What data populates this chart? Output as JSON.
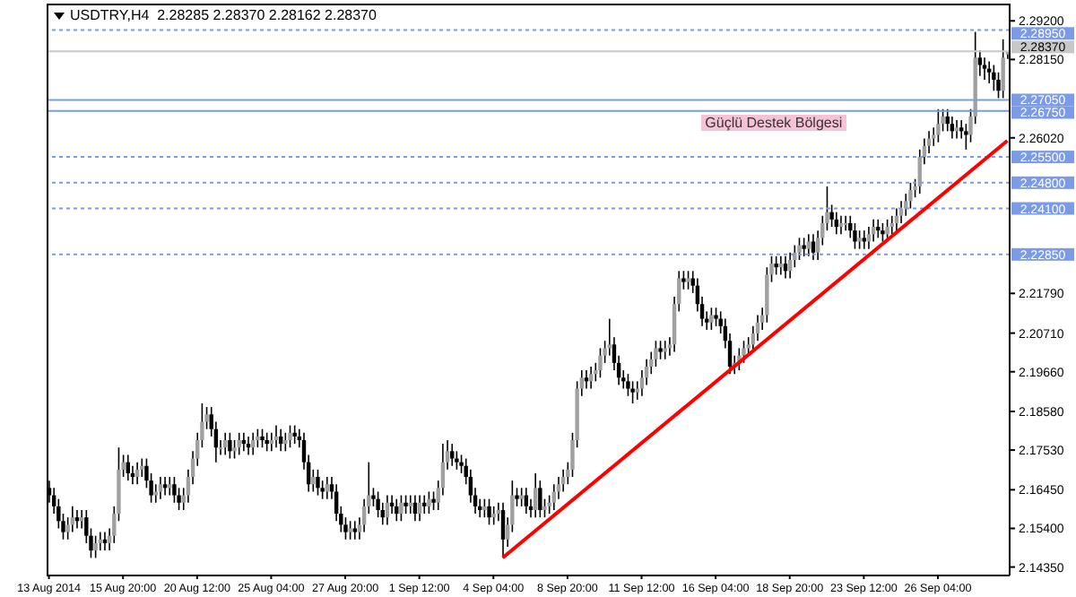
{
  "chart_data": {
    "type": "candlestick",
    "title": "USDTRY,H4  2.28285 2.28370 2.28162 2.28370",
    "categories": [
      "13 Aug 2014",
      null,
      null,
      null,
      null,
      null,
      null,
      null,
      null,
      null,
      null,
      null,
      null,
      null,
      null,
      null,
      "15 Aug 20:00",
      null,
      null,
      null,
      null,
      null,
      null,
      null,
      null,
      null,
      null,
      null,
      null,
      null,
      null,
      null,
      "20 Aug 12:00",
      null,
      null,
      null,
      null,
      null,
      null,
      null,
      null,
      null,
      null,
      null,
      null,
      null,
      null,
      null,
      "25 Aug 04:00",
      null,
      null,
      null,
      null,
      null,
      null,
      null,
      null,
      null,
      null,
      null,
      null,
      null,
      null,
      null,
      "27 Aug 20:00",
      null,
      null,
      null,
      null,
      null,
      null,
      null,
      null,
      null,
      null,
      null,
      null,
      null,
      null,
      null,
      "1 Sep 12:00",
      null,
      null,
      null,
      null,
      null,
      null,
      null,
      null,
      null,
      null,
      null,
      null,
      null,
      null,
      null,
      "4 Sep 04:00",
      null,
      null,
      null,
      null,
      null,
      null,
      null,
      null,
      null,
      null,
      null,
      null,
      null,
      null,
      null,
      "8 Sep 20:00",
      null,
      null,
      null,
      null,
      null,
      null,
      null,
      null,
      null,
      null,
      null,
      null,
      null,
      null,
      null,
      "11 Sep 12:00",
      null,
      null,
      null,
      null,
      null,
      null,
      null,
      null,
      null,
      null,
      null,
      null,
      null,
      null,
      null,
      "16 Sep 04:00",
      null,
      null,
      null,
      null,
      null,
      null,
      null,
      null,
      null,
      null,
      null,
      null,
      null,
      null,
      null,
      "18 Sep 20:00",
      null,
      null,
      null,
      null,
      null,
      null,
      null,
      null,
      null,
      null,
      null,
      null,
      null,
      null,
      null,
      "23 Sep 12:00",
      null,
      null,
      null,
      null,
      null,
      null,
      null,
      null,
      null,
      null,
      null,
      null,
      null,
      null,
      null,
      "26 Sep 04:00",
      null,
      null,
      null,
      null,
      null,
      null,
      null,
      null,
      null,
      null,
      null,
      null,
      null,
      null,
      null
    ],
    "ohlc": [
      [
        2.165,
        2.167,
        2.161,
        2.163
      ],
      [
        2.163,
        2.165,
        2.158,
        2.16
      ],
      [
        2.16,
        2.162,
        2.154,
        2.156
      ],
      [
        2.156,
        2.158,
        2.151,
        2.153
      ],
      [
        2.153,
        2.157,
        2.151,
        2.155
      ],
      [
        2.155,
        2.16,
        2.153,
        2.157
      ],
      [
        2.157,
        2.159,
        2.154,
        2.156
      ],
      [
        2.156,
        2.159,
        2.154,
        2.157
      ],
      [
        2.157,
        2.159,
        2.15,
        2.152
      ],
      [
        2.152,
        2.154,
        2.146,
        2.148
      ],
      [
        2.148,
        2.152,
        2.146,
        2.15
      ],
      [
        2.15,
        2.153,
        2.148,
        2.151
      ],
      [
        2.151,
        2.153,
        2.148,
        2.15
      ],
      [
        2.15,
        2.154,
        2.148,
        2.152
      ],
      [
        2.152,
        2.16,
        2.15,
        2.158
      ],
      [
        2.158,
        2.176,
        2.156,
        2.17
      ],
      [
        2.17,
        2.174,
        2.168,
        2.172
      ],
      [
        2.172,
        2.174,
        2.167,
        2.169
      ],
      [
        2.169,
        2.171,
        2.166,
        2.168
      ],
      [
        2.168,
        2.172,
        2.166,
        2.17
      ],
      [
        2.17,
        2.173,
        2.168,
        2.171
      ],
      [
        2.171,
        2.173,
        2.165,
        2.167
      ],
      [
        2.167,
        2.169,
        2.161,
        2.163
      ],
      [
        2.163,
        2.166,
        2.161,
        2.164
      ],
      [
        2.164,
        2.168,
        2.162,
        2.166
      ],
      [
        2.166,
        2.168,
        2.163,
        2.165
      ],
      [
        2.165,
        2.168,
        2.163,
        2.166
      ],
      [
        2.166,
        2.168,
        2.161,
        2.163
      ],
      [
        2.163,
        2.165,
        2.159,
        2.161
      ],
      [
        2.161,
        2.165,
        2.159,
        2.163
      ],
      [
        2.163,
        2.17,
        2.161,
        2.168
      ],
      [
        2.168,
        2.175,
        2.166,
        2.173
      ],
      [
        2.173,
        2.18,
        2.171,
        2.178
      ],
      [
        2.178,
        2.188,
        2.176,
        2.183
      ],
      [
        2.183,
        2.187,
        2.181,
        2.185
      ],
      [
        2.185,
        2.187,
        2.179,
        2.181
      ],
      [
        2.181,
        2.183,
        2.172,
        2.176
      ],
      [
        2.176,
        2.178,
        2.174,
        2.176
      ],
      [
        2.176,
        2.18,
        2.174,
        2.178
      ],
      [
        2.178,
        2.18,
        2.173,
        2.175
      ],
      [
        2.175,
        2.178,
        2.173,
        2.176
      ],
      [
        2.176,
        2.18,
        2.174,
        2.178
      ],
      [
        2.178,
        2.18,
        2.175,
        2.177
      ],
      [
        2.177,
        2.179,
        2.174,
        2.176
      ],
      [
        2.176,
        2.18,
        2.174,
        2.178
      ],
      [
        2.178,
        2.181,
        2.176,
        2.179
      ],
      [
        2.179,
        2.181,
        2.176,
        2.178
      ],
      [
        2.178,
        2.18,
        2.175,
        2.177
      ],
      [
        2.177,
        2.18,
        2.175,
        2.178
      ],
      [
        2.178,
        2.182,
        2.176,
        2.179
      ],
      [
        2.179,
        2.181,
        2.175,
        2.177
      ],
      [
        2.177,
        2.18,
        2.175,
        2.178
      ],
      [
        2.178,
        2.182,
        2.176,
        2.18
      ],
      [
        2.18,
        2.182,
        2.177,
        2.179
      ],
      [
        2.179,
        2.181,
        2.176,
        2.178
      ],
      [
        2.178,
        2.18,
        2.17,
        2.172
      ],
      [
        2.172,
        2.174,
        2.164,
        2.166
      ],
      [
        2.166,
        2.17,
        2.164,
        2.168
      ],
      [
        2.168,
        2.17,
        2.163,
        2.165
      ],
      [
        2.165,
        2.167,
        2.162,
        2.164
      ],
      [
        2.164,
        2.168,
        2.162,
        2.166
      ],
      [
        2.166,
        2.168,
        2.162,
        2.164
      ],
      [
        2.164,
        2.166,
        2.156,
        2.158
      ],
      [
        2.158,
        2.16,
        2.153,
        2.155
      ],
      [
        2.155,
        2.157,
        2.151,
        2.153
      ],
      [
        2.153,
        2.156,
        2.151,
        2.154
      ],
      [
        2.154,
        2.156,
        2.151,
        2.153
      ],
      [
        2.153,
        2.157,
        2.151,
        2.155
      ],
      [
        2.155,
        2.162,
        2.153,
        2.16
      ],
      [
        2.16,
        2.172,
        2.158,
        2.163
      ],
      [
        2.163,
        2.165,
        2.16,
        2.162
      ],
      [
        2.162,
        2.164,
        2.157,
        2.159
      ],
      [
        2.159,
        2.161,
        2.155,
        2.157
      ],
      [
        2.157,
        2.163,
        2.155,
        2.161
      ],
      [
        2.161,
        2.163,
        2.158,
        2.16
      ],
      [
        2.16,
        2.162,
        2.156,
        2.158
      ],
      [
        2.158,
        2.163,
        2.156,
        2.161
      ],
      [
        2.161,
        2.163,
        2.158,
        2.16
      ],
      [
        2.16,
        2.163,
        2.158,
        2.161
      ],
      [
        2.161,
        2.163,
        2.156,
        2.158
      ],
      [
        2.158,
        2.163,
        2.156,
        2.161
      ],
      [
        2.161,
        2.163,
        2.158,
        2.16
      ],
      [
        2.16,
        2.164,
        2.158,
        2.162
      ],
      [
        2.162,
        2.164,
        2.159,
        2.161
      ],
      [
        2.161,
        2.167,
        2.159,
        2.165
      ],
      [
        2.165,
        2.177,
        2.163,
        2.172
      ],
      [
        2.172,
        2.178,
        2.17,
        2.175
      ],
      [
        2.175,
        2.177,
        2.171,
        2.173
      ],
      [
        2.173,
        2.175,
        2.17,
        2.172
      ],
      [
        2.172,
        2.174,
        2.169,
        2.171
      ],
      [
        2.171,
        2.173,
        2.166,
        2.168
      ],
      [
        2.168,
        2.17,
        2.161,
        2.163
      ],
      [
        2.163,
        2.165,
        2.158,
        2.16
      ],
      [
        2.16,
        2.162,
        2.157,
        2.159
      ],
      [
        2.159,
        2.162,
        2.157,
        2.16
      ],
      [
        2.16,
        2.162,
        2.155,
        2.157
      ],
      [
        2.157,
        2.16,
        2.155,
        2.158
      ],
      [
        2.158,
        2.161,
        2.156,
        2.159
      ],
      [
        2.159,
        2.161,
        2.146,
        2.151
      ],
      [
        2.151,
        2.157,
        2.149,
        2.155
      ],
      [
        2.155,
        2.167,
        2.153,
        2.163
      ],
      [
        2.163,
        2.165,
        2.16,
        2.162
      ],
      [
        2.162,
        2.165,
        2.16,
        2.163
      ],
      [
        2.163,
        2.165,
        2.158,
        2.16
      ],
      [
        2.16,
        2.162,
        2.157,
        2.159
      ],
      [
        2.159,
        2.169,
        2.157,
        2.165
      ],
      [
        2.165,
        2.167,
        2.157,
        2.159
      ],
      [
        2.159,
        2.162,
        2.157,
        2.16
      ],
      [
        2.16,
        2.163,
        2.158,
        2.161
      ],
      [
        2.161,
        2.166,
        2.159,
        2.164
      ],
      [
        2.164,
        2.168,
        2.162,
        2.166
      ],
      [
        2.166,
        2.17,
        2.164,
        2.168
      ],
      [
        2.168,
        2.172,
        2.166,
        2.17
      ],
      [
        2.17,
        2.18,
        2.168,
        2.178
      ],
      [
        2.178,
        2.194,
        2.176,
        2.192
      ],
      [
        2.192,
        2.197,
        2.19,
        2.195
      ],
      [
        2.195,
        2.197,
        2.192,
        2.194
      ],
      [
        2.194,
        2.198,
        2.192,
        2.196
      ],
      [
        2.196,
        2.199,
        2.194,
        2.197
      ],
      [
        2.197,
        2.203,
        2.195,
        2.201
      ],
      [
        2.201,
        2.205,
        2.199,
        2.203
      ],
      [
        2.203,
        2.211,
        2.201,
        2.204
      ],
      [
        2.204,
        2.206,
        2.197,
        2.199
      ],
      [
        2.199,
        2.201,
        2.193,
        2.195
      ],
      [
        2.195,
        2.197,
        2.192,
        2.194
      ],
      [
        2.194,
        2.196,
        2.19,
        2.192
      ],
      [
        2.192,
        2.194,
        2.188,
        2.191
      ],
      [
        2.191,
        2.194,
        2.189,
        2.192
      ],
      [
        2.192,
        2.197,
        2.19,
        2.195
      ],
      [
        2.195,
        2.2,
        2.193,
        2.198
      ],
      [
        2.198,
        2.202,
        2.196,
        2.2
      ],
      [
        2.2,
        2.205,
        2.198,
        2.203
      ],
      [
        2.203,
        2.205,
        2.2,
        2.202
      ],
      [
        2.202,
        2.205,
        2.2,
        2.203
      ],
      [
        2.203,
        2.206,
        2.201,
        2.204
      ],
      [
        2.204,
        2.217,
        2.202,
        2.215
      ],
      [
        2.215,
        2.224,
        2.213,
        2.222
      ],
      [
        2.222,
        2.224,
        2.219,
        2.221
      ],
      [
        2.221,
        2.224,
        2.219,
        2.222
      ],
      [
        2.222,
        2.224,
        2.218,
        2.22
      ],
      [
        2.22,
        2.222,
        2.213,
        2.215
      ],
      [
        2.215,
        2.217,
        2.209,
        2.211
      ],
      [
        2.211,
        2.213,
        2.208,
        2.21
      ],
      [
        2.21,
        2.214,
        2.208,
        2.212
      ],
      [
        2.212,
        2.214,
        2.209,
        2.211
      ],
      [
        2.211,
        2.213,
        2.207,
        2.209
      ],
      [
        2.209,
        2.211,
        2.203,
        2.205
      ],
      [
        2.205,
        2.207,
        2.196,
        2.198
      ],
      [
        2.198,
        2.201,
        2.196,
        2.199
      ],
      [
        2.199,
        2.203,
        2.197,
        2.201
      ],
      [
        2.201,
        2.205,
        2.199,
        2.203
      ],
      [
        2.203,
        2.206,
        2.201,
        2.204
      ],
      [
        2.204,
        2.209,
        2.202,
        2.207
      ],
      [
        2.207,
        2.212,
        2.205,
        2.21
      ],
      [
        2.21,
        2.214,
        2.208,
        2.212
      ],
      [
        2.212,
        2.225,
        2.21,
        2.223
      ],
      [
        2.223,
        2.228,
        2.221,
        2.226
      ],
      [
        2.226,
        2.228,
        2.223,
        2.225
      ],
      [
        2.225,
        2.228,
        2.223,
        2.226
      ],
      [
        2.226,
        2.228,
        2.222,
        2.224
      ],
      [
        2.224,
        2.229,
        2.222,
        2.227
      ],
      [
        2.227,
        2.231,
        2.225,
        2.229
      ],
      [
        2.229,
        2.233,
        2.227,
        2.231
      ],
      [
        2.231,
        2.233,
        2.228,
        2.23
      ],
      [
        2.23,
        2.234,
        2.228,
        2.232
      ],
      [
        2.232,
        2.234,
        2.227,
        2.229
      ],
      [
        2.229,
        2.235,
        2.227,
        2.233
      ],
      [
        2.233,
        2.239,
        2.231,
        2.237
      ],
      [
        2.237,
        2.247,
        2.235,
        2.24
      ],
      [
        2.24,
        2.242,
        2.236,
        2.238
      ],
      [
        2.238,
        2.24,
        2.234,
        2.236
      ],
      [
        2.236,
        2.239,
        2.234,
        2.237
      ],
      [
        2.237,
        2.239,
        2.235,
        2.237
      ],
      [
        2.237,
        2.239,
        2.233,
        2.235
      ],
      [
        2.235,
        2.237,
        2.23,
        2.232
      ],
      [
        2.232,
        2.235,
        2.23,
        2.233
      ],
      [
        2.233,
        2.235,
        2.23,
        2.232
      ],
      [
        2.232,
        2.236,
        2.23,
        2.234
      ],
      [
        2.234,
        2.238,
        2.232,
        2.236
      ],
      [
        2.236,
        2.238,
        2.233,
        2.235
      ],
      [
        2.235,
        2.237,
        2.232,
        2.234
      ],
      [
        2.234,
        2.238,
        2.232,
        2.236
      ],
      [
        2.236,
        2.239,
        2.234,
        2.237
      ],
      [
        2.237,
        2.241,
        2.235,
        2.239
      ],
      [
        2.239,
        2.243,
        2.237,
        2.241
      ],
      [
        2.241,
        2.245,
        2.239,
        2.243
      ],
      [
        2.243,
        2.248,
        2.241,
        2.246
      ],
      [
        2.246,
        2.249,
        2.244,
        2.247
      ],
      [
        2.247,
        2.257,
        2.245,
        2.255
      ],
      [
        2.255,
        2.26,
        2.253,
        2.258
      ],
      [
        2.258,
        2.262,
        2.256,
        2.26
      ],
      [
        2.26,
        2.263,
        2.258,
        2.261
      ],
      [
        2.261,
        2.268,
        2.259,
        2.264
      ],
      [
        2.264,
        2.268,
        2.262,
        2.266
      ],
      [
        2.266,
        2.268,
        2.262,
        2.264
      ],
      [
        2.264,
        2.266,
        2.26,
        2.262
      ],
      [
        2.262,
        2.265,
        2.26,
        2.263
      ],
      [
        2.263,
        2.265,
        2.26,
        2.262
      ],
      [
        2.262,
        2.264,
        2.257,
        2.261
      ],
      [
        2.261,
        2.268,
        2.259,
        2.266
      ],
      [
        2.266,
        2.289,
        2.264,
        2.282
      ],
      [
        2.282,
        2.284,
        2.277,
        2.28
      ],
      [
        2.28,
        2.282,
        2.276,
        2.279
      ],
      [
        2.279,
        2.281,
        2.275,
        2.278
      ],
      [
        2.278,
        2.28,
        2.273,
        2.276
      ],
      [
        2.276,
        2.278,
        2.271,
        2.273
      ],
      [
        2.273,
        2.287,
        2.271,
        2.282
      ],
      [
        2.28285,
        2.2837,
        2.28162,
        2.2837
      ]
    ],
    "colors": [
      "#000000",
      "#000000",
      "#000000",
      "#000000",
      "#a0a0a0",
      "#a0a0a0",
      "#000000",
      "#a0a0a0",
      "#000000",
      "#000000",
      "#a0a0a0",
      "#a0a0a0",
      "#000000",
      "#a0a0a0",
      "#a0a0a0",
      "#a0a0a0",
      "#a0a0a0",
      "#000000",
      "#000000",
      "#a0a0a0",
      "#a0a0a0",
      "#000000",
      "#000000",
      "#a0a0a0",
      "#a0a0a0",
      "#000000",
      "#a0a0a0",
      "#000000",
      "#000000",
      "#a0a0a0",
      "#a0a0a0",
      "#a0a0a0",
      "#a0a0a0",
      "#a0a0a0",
      "#a0a0a0",
      "#000000",
      "#000000",
      "#a0a0a0",
      "#a0a0a0",
      "#000000",
      "#a0a0a0",
      "#a0a0a0",
      "#000000",
      "#000000",
      "#a0a0a0",
      "#a0a0a0",
      "#000000",
      "#000000",
      "#a0a0a0",
      "#a0a0a0",
      "#000000",
      "#a0a0a0",
      "#a0a0a0",
      "#000000",
      "#000000",
      "#000000",
      "#000000",
      "#a0a0a0",
      "#000000",
      "#000000",
      "#a0a0a0",
      "#000000",
      "#000000",
      "#000000",
      "#000000",
      "#a0a0a0",
      "#000000",
      "#a0a0a0",
      "#a0a0a0",
      "#a0a0a0",
      "#000000",
      "#000000",
      "#000000",
      "#a0a0a0",
      "#000000",
      "#000000",
      "#a0a0a0",
      "#000000",
      "#a0a0a0",
      "#000000",
      "#a0a0a0",
      "#000000",
      "#a0a0a0",
      "#000000",
      "#a0a0a0",
      "#a0a0a0",
      "#a0a0a0",
      "#000000",
      "#000000",
      "#000000",
      "#000000",
      "#000000",
      "#000000",
      "#000000",
      "#a0a0a0",
      "#000000",
      "#a0a0a0",
      "#a0a0a0",
      "#000000",
      "#a0a0a0",
      "#a0a0a0",
      "#000000",
      "#a0a0a0",
      "#000000",
      "#000000",
      "#a0a0a0",
      "#000000",
      "#a0a0a0",
      "#a0a0a0",
      "#a0a0a0",
      "#a0a0a0",
      "#a0a0a0",
      "#a0a0a0",
      "#a0a0a0",
      "#a0a0a0",
      "#a0a0a0",
      "#000000",
      "#a0a0a0",
      "#a0a0a0",
      "#a0a0a0",
      "#a0a0a0",
      "#a0a0a0",
      "#000000",
      "#000000",
      "#000000",
      "#000000",
      "#000000",
      "#a0a0a0",
      "#a0a0a0",
      "#a0a0a0",
      "#a0a0a0",
      "#a0a0a0",
      "#000000",
      "#a0a0a0",
      "#a0a0a0",
      "#a0a0a0",
      "#a0a0a0",
      "#000000",
      "#a0a0a0",
      "#000000",
      "#000000",
      "#000000",
      "#000000",
      "#a0a0a0",
      "#000000",
      "#000000",
      "#000000",
      "#000000",
      "#a0a0a0",
      "#a0a0a0",
      "#a0a0a0",
      "#a0a0a0",
      "#a0a0a0",
      "#a0a0a0",
      "#a0a0a0",
      "#a0a0a0",
      "#a0a0a0",
      "#000000",
      "#a0a0a0",
      "#000000",
      "#a0a0a0",
      "#a0a0a0",
      "#a0a0a0",
      "#000000",
      "#a0a0a0",
      "#000000",
      "#a0a0a0",
      "#a0a0a0",
      "#a0a0a0",
      "#000000",
      "#000000",
      "#a0a0a0",
      "#a0a0a0",
      "#000000",
      "#000000",
      "#a0a0a0",
      "#000000",
      "#a0a0a0",
      "#a0a0a0",
      "#000000",
      "#000000",
      "#a0a0a0",
      "#a0a0a0",
      "#a0a0a0",
      "#a0a0a0",
      "#a0a0a0",
      "#a0a0a0",
      "#a0a0a0",
      "#a0a0a0",
      "#a0a0a0",
      "#a0a0a0",
      "#a0a0a0",
      "#a0a0a0",
      "#a0a0a0",
      "#000000",
      "#000000",
      "#a0a0a0",
      "#000000",
      "#000000",
      "#a0a0a0",
      "#a0a0a0",
      "#000000",
      "#000000",
      "#000000",
      "#000000",
      "#000000",
      "#a0a0a0",
      "#a0a0a0"
    ],
    "series": [
      {
        "type": "line",
        "color": "#ff0000",
        "values": [
          null,
          null,
          null,
          null,
          null,
          null,
          null,
          null,
          null,
          null,
          null,
          null,
          null,
          null,
          null,
          null,
          null,
          null,
          null,
          null,
          null,
          null,
          null,
          null,
          null,
          null,
          null,
          null,
          null,
          null,
          null,
          null,
          null,
          null,
          null,
          null,
          null,
          null,
          null,
          null,
          null,
          null,
          null,
          null,
          null,
          null,
          null,
          null,
          null,
          null,
          null,
          null,
          null,
          null,
          null,
          null,
          null,
          null,
          null,
          null,
          null,
          null,
          null,
          null,
          null,
          null,
          null,
          null,
          null,
          null,
          null,
          null,
          null,
          null,
          null,
          null,
          null,
          null,
          null,
          null,
          null,
          null,
          null,
          null,
          null,
          null,
          null,
          null,
          null,
          null,
          null,
          null,
          null,
          null,
          null,
          null,
          null,
          null,
          2.146,
          null,
          null,
          null,
          null,
          null,
          null,
          null,
          null,
          null,
          null,
          null,
          null,
          null,
          null,
          null,
          null,
          null,
          null,
          null,
          null,
          null,
          null,
          null,
          null,
          null,
          null,
          null,
          null,
          null,
          null,
          null,
          null,
          null,
          null,
          null,
          null,
          null,
          null,
          null,
          null,
          null,
          null,
          null,
          null,
          null,
          null,
          null,
          null,
          null,
          null,
          null,
          null,
          null,
          null,
          null,
          null,
          null,
          null,
          null,
          null,
          null,
          null,
          null,
          null,
          null,
          null,
          null,
          null,
          null,
          null,
          null,
          null,
          null,
          null,
          null,
          null,
          null,
          null,
          null,
          null,
          null,
          null,
          null,
          null,
          null,
          null,
          null,
          null,
          null,
          null,
          null,
          null,
          null,
          null,
          null,
          null,
          null,
          null,
          null,
          null,
          null,
          null,
          null,
          null,
          null,
          null,
          null,
          null,
          2.2594
        ]
      }
    ],
    "ylim": [
      2.1412,
      2.2967
    ],
    "yticks": [
      {
        "value": 2.1435,
        "label": "2.14350"
      },
      {
        "value": 2.154,
        "label": "2.15400"
      },
      {
        "value": 2.1645,
        "label": "2.16450"
      },
      {
        "value": 2.1753,
        "label": "2.17530"
      },
      {
        "value": 2.1858,
        "label": "2.18580"
      },
      {
        "value": 2.1966,
        "label": "2.19660"
      },
      {
        "value": 2.2071,
        "label": "2.20710"
      },
      {
        "value": 2.2179,
        "label": "2.21790"
      },
      {
        "value": 2.2602,
        "label": "2.26020"
      },
      {
        "value": 2.2815,
        "label": "2.28150"
      },
      {
        "value": 2.292,
        "label": "2.29200"
      }
    ],
    "ref_lines": [
      {
        "axis": "y",
        "value": 2.2895,
        "label": "2.28950",
        "color": "#7b9be6",
        "line_style": "dotted"
      },
      {
        "axis": "y",
        "value": 2.2837,
        "label": "2.28370",
        "color": "#c8c8c8",
        "line_style": "solid"
      },
      {
        "axis": "y",
        "value": 2.2705,
        "label": "2.27050",
        "color": "#7b9be6",
        "line_style": "solid"
      },
      {
        "axis": "y",
        "value": 2.2675,
        "label": "2.26750",
        "color": "#7b9be6",
        "line_style": "solid"
      },
      {
        "axis": "y",
        "value": 2.255,
        "label": "2.25500",
        "color": "#7b9be6",
        "line_style": "dotted"
      },
      {
        "axis": "y",
        "value": 2.248,
        "label": "2.24800",
        "color": "#7b9be6",
        "line_style": "dotted"
      },
      {
        "axis": "y",
        "value": 2.241,
        "label": "2.24100",
        "color": "#7b9be6",
        "line_style": "dotted"
      },
      {
        "axis": "y",
        "value": 2.2285,
        "label": "2.22850",
        "color": "#7b9be6",
        "line_style": "dotted"
      }
    ],
    "annotations": [
      {
        "text": "Güçlü Destek Bölgesi",
        "y": 2.2675
      }
    ]
  }
}
